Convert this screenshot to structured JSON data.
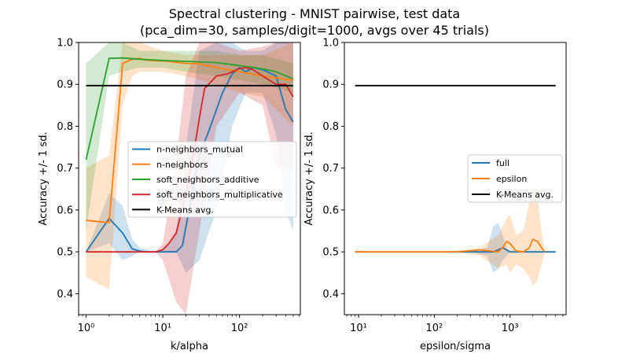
{
  "figure": {
    "title_line1": "Spectral clustering - MNIST pairwise, test data",
    "title_line2": "(pca_dim=30, samples/digit=1000, avgs over 45 trials)"
  },
  "colors": {
    "blue": "#1f77b4",
    "orange": "#ff7f0e",
    "green": "#2ca02c",
    "red": "#d62728",
    "black": "#000000"
  },
  "chart_data": [
    {
      "type": "line",
      "xlabel": "k/alpha",
      "ylabel": "Accuracy +/- 1 sd.",
      "xscale": "log",
      "xlim": [
        0.8,
        620
      ],
      "ylim": [
        0.35,
        1.0
      ],
      "xticks": [
        1,
        10,
        100
      ],
      "xtick_labels": [
        "10⁰",
        "10¹",
        "10²"
      ],
      "yticks": [
        0.4,
        0.5,
        0.6,
        0.7,
        0.8,
        0.9,
        1.0
      ],
      "ytick_labels": [
        "0.4",
        "0.5",
        "0.6",
        "0.7",
        "0.8",
        "0.9",
        "1.0"
      ],
      "grid": false,
      "legend": "center-right",
      "series": [
        {
          "name": "n-neighbors_mutual",
          "color": "blue",
          "x": [
            1,
            2,
            3,
            4,
            5,
            6,
            8,
            10,
            15,
            18,
            22,
            30,
            40,
            60,
            80,
            100,
            120,
            150,
            200,
            300,
            400,
            500
          ],
          "y": [
            0.5,
            0.58,
            0.545,
            0.507,
            0.502,
            0.5,
            0.5,
            0.5,
            0.5,
            0.515,
            0.6,
            0.73,
            0.79,
            0.88,
            0.925,
            0.94,
            0.93,
            0.94,
            0.935,
            0.92,
            0.84,
            0.81
          ],
          "band_x": [
            1,
            2,
            3,
            4,
            5,
            8,
            10,
            15,
            20,
            30,
            50,
            80,
            120,
            200,
            300,
            400,
            500
          ],
          "band_lo": [
            0.5,
            0.52,
            0.48,
            0.49,
            0.5,
            0.5,
            0.5,
            0.5,
            0.45,
            0.48,
            0.6,
            0.8,
            0.88,
            0.88,
            0.78,
            0.6,
            0.55
          ],
          "band_hi": [
            0.5,
            0.64,
            0.61,
            0.53,
            0.51,
            0.5,
            0.5,
            0.55,
            0.75,
            0.98,
            1.0,
            1.0,
            0.98,
            0.98,
            1.0,
            1.0,
            1.0
          ]
        },
        {
          "name": "n-neighbors",
          "color": "orange",
          "x": [
            1,
            2,
            3,
            4,
            5,
            6,
            8,
            10,
            20,
            30,
            50,
            100,
            200,
            500
          ],
          "y": [
            0.575,
            0.57,
            0.95,
            0.96,
            0.962,
            0.958,
            0.956,
            0.956,
            0.95,
            0.949,
            0.94,
            0.93,
            0.92,
            0.91
          ],
          "band_x": [
            1,
            2,
            3,
            4,
            5,
            10,
            20,
            50,
            100,
            200,
            500
          ],
          "band_lo": [
            0.44,
            0.41,
            0.85,
            0.92,
            0.93,
            0.93,
            0.92,
            0.9,
            0.88,
            0.87,
            0.8
          ],
          "band_hi": [
            0.7,
            0.73,
            1.0,
            1.0,
            1.0,
            0.98,
            0.97,
            0.97,
            0.97,
            0.97,
            1.0
          ]
        },
        {
          "name": "soft_neighbors_additive",
          "color": "green",
          "x": [
            1,
            2,
            3,
            5,
            10,
            20,
            50,
            100,
            200,
            300,
            500
          ],
          "y": [
            0.72,
            0.962,
            0.963,
            0.96,
            0.957,
            0.955,
            0.952,
            0.945,
            0.937,
            0.93,
            0.913
          ],
          "band_x": [
            1,
            2,
            3,
            5,
            10,
            20,
            50,
            100,
            200,
            500
          ],
          "band_lo": [
            0.55,
            0.92,
            0.93,
            0.94,
            0.94,
            0.93,
            0.92,
            0.91,
            0.9,
            0.88
          ],
          "band_hi": [
            0.95,
            1.0,
            1.0,
            0.98,
            0.98,
            0.98,
            0.98,
            0.97,
            0.97,
            0.95
          ]
        },
        {
          "name": "soft_neighbors_multiplicative",
          "color": "red",
          "x": [
            1,
            2,
            3,
            5,
            8,
            10,
            12,
            15,
            20,
            25,
            30,
            35,
            50,
            70,
            100,
            120,
            150,
            200,
            300,
            400,
            500
          ],
          "y": [
            0.5,
            0.5,
            0.5,
            0.5,
            0.5,
            0.505,
            0.52,
            0.545,
            0.64,
            0.73,
            0.82,
            0.89,
            0.92,
            0.925,
            0.938,
            0.94,
            0.935,
            0.92,
            0.9,
            0.9,
            0.87
          ],
          "band_x": [
            1,
            3,
            5,
            8,
            10,
            15,
            20,
            30,
            50,
            100,
            200,
            300,
            500
          ],
          "band_lo": [
            0.5,
            0.5,
            0.5,
            0.5,
            0.48,
            0.38,
            0.35,
            0.55,
            0.8,
            0.88,
            0.85,
            0.7,
            0.7
          ],
          "band_hi": [
            0.5,
            0.5,
            0.5,
            0.5,
            0.52,
            0.72,
            0.92,
            1.0,
            1.0,
            0.98,
            0.99,
            1.0,
            1.0
          ]
        },
        {
          "name": "K-Means avg.",
          "color": "black",
          "x": [
            1,
            500
          ],
          "y": [
            0.897,
            0.897
          ]
        }
      ]
    },
    {
      "type": "line",
      "xlabel": "epsilon/sigma",
      "ylabel": "Accuracy +/- 1 sd.",
      "xscale": "log",
      "xlim": [
        6.5,
        5500
      ],
      "ylim": [
        0.35,
        1.0
      ],
      "xticks": [
        10,
        100,
        1000
      ],
      "xtick_labels": [
        "10¹",
        "10²",
        "10³"
      ],
      "yticks": [
        0.4,
        0.5,
        0.6,
        0.7,
        0.8,
        0.9,
        1.0
      ],
      "ytick_labels": [
        "0.4",
        "0.5",
        "0.6",
        "0.7",
        "0.8",
        "0.9",
        "1.0"
      ],
      "grid": false,
      "legend": "center-right",
      "series": [
        {
          "name": "full",
          "color": "blue",
          "x": [
            9,
            20,
            50,
            100,
            200,
            400,
            500,
            600,
            700,
            800,
            1000,
            1500,
            2000,
            3000,
            4000
          ],
          "y": [
            0.5,
            0.5,
            0.5,
            0.5,
            0.5,
            0.5,
            0.5,
            0.5,
            0.505,
            0.51,
            0.5,
            0.5,
            0.5,
            0.5,
            0.5
          ],
          "band_x": [
            9,
            300,
            500,
            600,
            700,
            800,
            900,
            1000,
            4000
          ],
          "band_lo": [
            0.5,
            0.5,
            0.49,
            0.45,
            0.46,
            0.48,
            0.49,
            0.5,
            0.5
          ],
          "band_hi": [
            0.5,
            0.5,
            0.51,
            0.56,
            0.57,
            0.54,
            0.51,
            0.5,
            0.5
          ]
        },
        {
          "name": "epsilon",
          "color": "orange",
          "x": [
            9,
            20,
            50,
            100,
            200,
            300,
            400,
            500,
            700,
            800,
            900,
            1000,
            1200,
            1500,
            1800,
            2000,
            2300,
            2600,
            2900
          ],
          "y": [
            0.5,
            0.5,
            0.5,
            0.5,
            0.5,
            0.503,
            0.505,
            0.503,
            0.5,
            0.51,
            0.525,
            0.52,
            0.502,
            0.5,
            0.51,
            0.53,
            0.525,
            0.51,
            0.5
          ],
          "band_x": [
            9,
            200,
            400,
            700,
            900,
            1000,
            1200,
            1500,
            1800,
            2000,
            2300,
            2600,
            2900
          ],
          "band_lo": [
            0.5,
            0.5,
            0.49,
            0.46,
            0.47,
            0.45,
            0.47,
            0.46,
            0.44,
            0.42,
            0.43,
            0.47,
            0.5
          ],
          "band_hi": [
            0.5,
            0.5,
            0.51,
            0.54,
            0.58,
            0.59,
            0.54,
            0.55,
            0.62,
            0.65,
            0.63,
            0.55,
            0.5
          ]
        },
        {
          "name": "K-Means avg.",
          "color": "black",
          "x": [
            9,
            4000
          ],
          "y": [
            0.897,
            0.897
          ]
        }
      ]
    }
  ]
}
